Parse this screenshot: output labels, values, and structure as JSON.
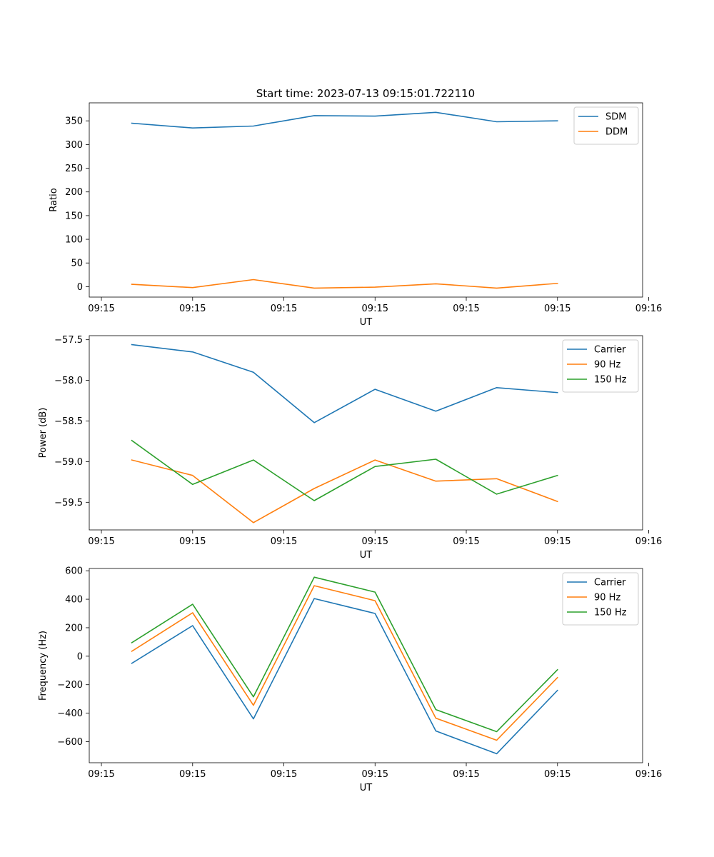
{
  "figure": {
    "title": "Start time: 2023-07-13 09:15:01.722110"
  },
  "colors": {
    "blue": "#1f77b4",
    "orange": "#ff7f0e",
    "green": "#2ca02c"
  },
  "chart_data": [
    {
      "type": "line",
      "title": "Start time: 2023-07-13 09:15:01.722110",
      "xlabel": "UT",
      "ylabel": "Ratio",
      "x": [
        1,
        2,
        3,
        4,
        5,
        6,
        7,
        8
      ],
      "xlim": [
        0.3,
        9.4
      ],
      "xticks": [
        0.5,
        2,
        3.5,
        5,
        6.5,
        8,
        9.5
      ],
      "xtick_labels": [
        "09:15",
        "09:15",
        "09:15",
        "09:15",
        "09:15",
        "09:15",
        "09:16"
      ],
      "ylim": [
        -22,
        388
      ],
      "yticks": [
        0,
        50,
        100,
        150,
        200,
        250,
        300,
        350
      ],
      "ytick_labels": [
        "0",
        "50",
        "100",
        "150",
        "200",
        "250",
        "300",
        "350"
      ],
      "legend": "top-right",
      "series": [
        {
          "name": "SDM",
          "color": "#1f77b4",
          "values": [
            345,
            335,
            339,
            361,
            360,
            368,
            348,
            350
          ]
        },
        {
          "name": "DDM",
          "color": "#ff7f0e",
          "values": [
            5,
            -2,
            15,
            -3,
            -1,
            6,
            -3,
            7
          ]
        }
      ]
    },
    {
      "type": "line",
      "title": "",
      "xlabel": "UT",
      "ylabel": "Power (dB)",
      "x": [
        1,
        2,
        3,
        4,
        5,
        6,
        7,
        8
      ],
      "xlim": [
        0.3,
        9.4
      ],
      "xticks": [
        0.5,
        2,
        3.5,
        5,
        6.5,
        8,
        9.5
      ],
      "xtick_labels": [
        "09:15",
        "09:15",
        "09:15",
        "09:15",
        "09:15",
        "09:15",
        "09:16"
      ],
      "ylim": [
        -59.84,
        -57.45
      ],
      "yticks": [
        -59.5,
        -59.0,
        -58.5,
        -58.0,
        -57.5
      ],
      "ytick_labels": [
        "−59.5",
        "−59.0",
        "−58.5",
        "−58.0",
        "−57.5"
      ],
      "legend": "top-right",
      "series": [
        {
          "name": "Carrier",
          "color": "#1f77b4",
          "values": [
            -57.56,
            -57.65,
            -57.9,
            -58.52,
            -58.11,
            -58.38,
            -58.09,
            -58.15
          ]
        },
        {
          "name": "90 Hz",
          "color": "#ff7f0e",
          "values": [
            -58.98,
            -59.17,
            -59.75,
            -59.33,
            -58.98,
            -59.24,
            -59.21,
            -59.49
          ]
        },
        {
          "name": "150 Hz",
          "color": "#2ca02c",
          "values": [
            -58.74,
            -59.28,
            -58.98,
            -59.48,
            -59.06,
            -58.97,
            -59.4,
            -59.17
          ]
        }
      ]
    },
    {
      "type": "line",
      "title": "",
      "xlabel": "UT",
      "ylabel": "Frequency (Hz)",
      "x": [
        1,
        2,
        3,
        4,
        5,
        6,
        7,
        8
      ],
      "xlim": [
        0.3,
        9.4
      ],
      "xticks": [
        0.5,
        2,
        3.5,
        5,
        6.5,
        8,
        9.5
      ],
      "xtick_labels": [
        "09:15",
        "09:15",
        "09:15",
        "09:15",
        "09:15",
        "09:15",
        "09:16"
      ],
      "ylim": [
        -748,
        616
      ],
      "yticks": [
        -600,
        -400,
        -200,
        0,
        200,
        400,
        600
      ],
      "ytick_labels": [
        "−600",
        "−400",
        "−200",
        "0",
        "200",
        "400",
        "600"
      ],
      "legend": "top-right",
      "series": [
        {
          "name": "Carrier",
          "color": "#1f77b4",
          "values": [
            -50,
            215,
            -440,
            405,
            300,
            -525,
            -685,
            -240
          ]
        },
        {
          "name": "90 Hz",
          "color": "#ff7f0e",
          "values": [
            35,
            305,
            -345,
            495,
            390,
            -435,
            -590,
            -150
          ]
        },
        {
          "name": "150 Hz",
          "color": "#2ca02c",
          "values": [
            95,
            365,
            -285,
            555,
            450,
            -375,
            -530,
            -95
          ]
        }
      ]
    }
  ]
}
